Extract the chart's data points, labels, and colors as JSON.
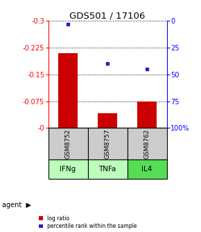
{
  "title": "GDS501 / 17106",
  "samples": [
    "GSM8752",
    "GSM8757",
    "GSM8762"
  ],
  "agents": [
    "IFNg",
    "TNFa",
    "IL4"
  ],
  "log_ratios": [
    -0.21,
    -0.042,
    -0.075
  ],
  "percentile_ranks": [
    3.0,
    40.0,
    45.0
  ],
  "ymin": -0.3,
  "ymax": 0.0,
  "yticks_left": [
    0.0,
    -0.075,
    -0.15,
    -0.225,
    -0.3
  ],
  "ytick_labels_left": [
    "-0",
    "-0.075",
    "-0.15",
    "-0.225",
    "-0.3"
  ],
  "yticks_right": [
    0,
    25,
    50,
    75,
    100
  ],
  "ytick_labels_right": [
    "0",
    "25",
    "50",
    "75",
    "100%"
  ],
  "bar_color": "#cc0000",
  "dot_color": "#2222cc",
  "bar_width": 0.5,
  "sample_box_color": "#cccccc",
  "agent_colors": [
    "#bbffbb",
    "#bbffbb",
    "#55dd55"
  ],
  "legend_items": [
    "log ratio",
    "percentile rank within the sample"
  ],
  "legend_colors": [
    "#cc0000",
    "#2222cc"
  ]
}
